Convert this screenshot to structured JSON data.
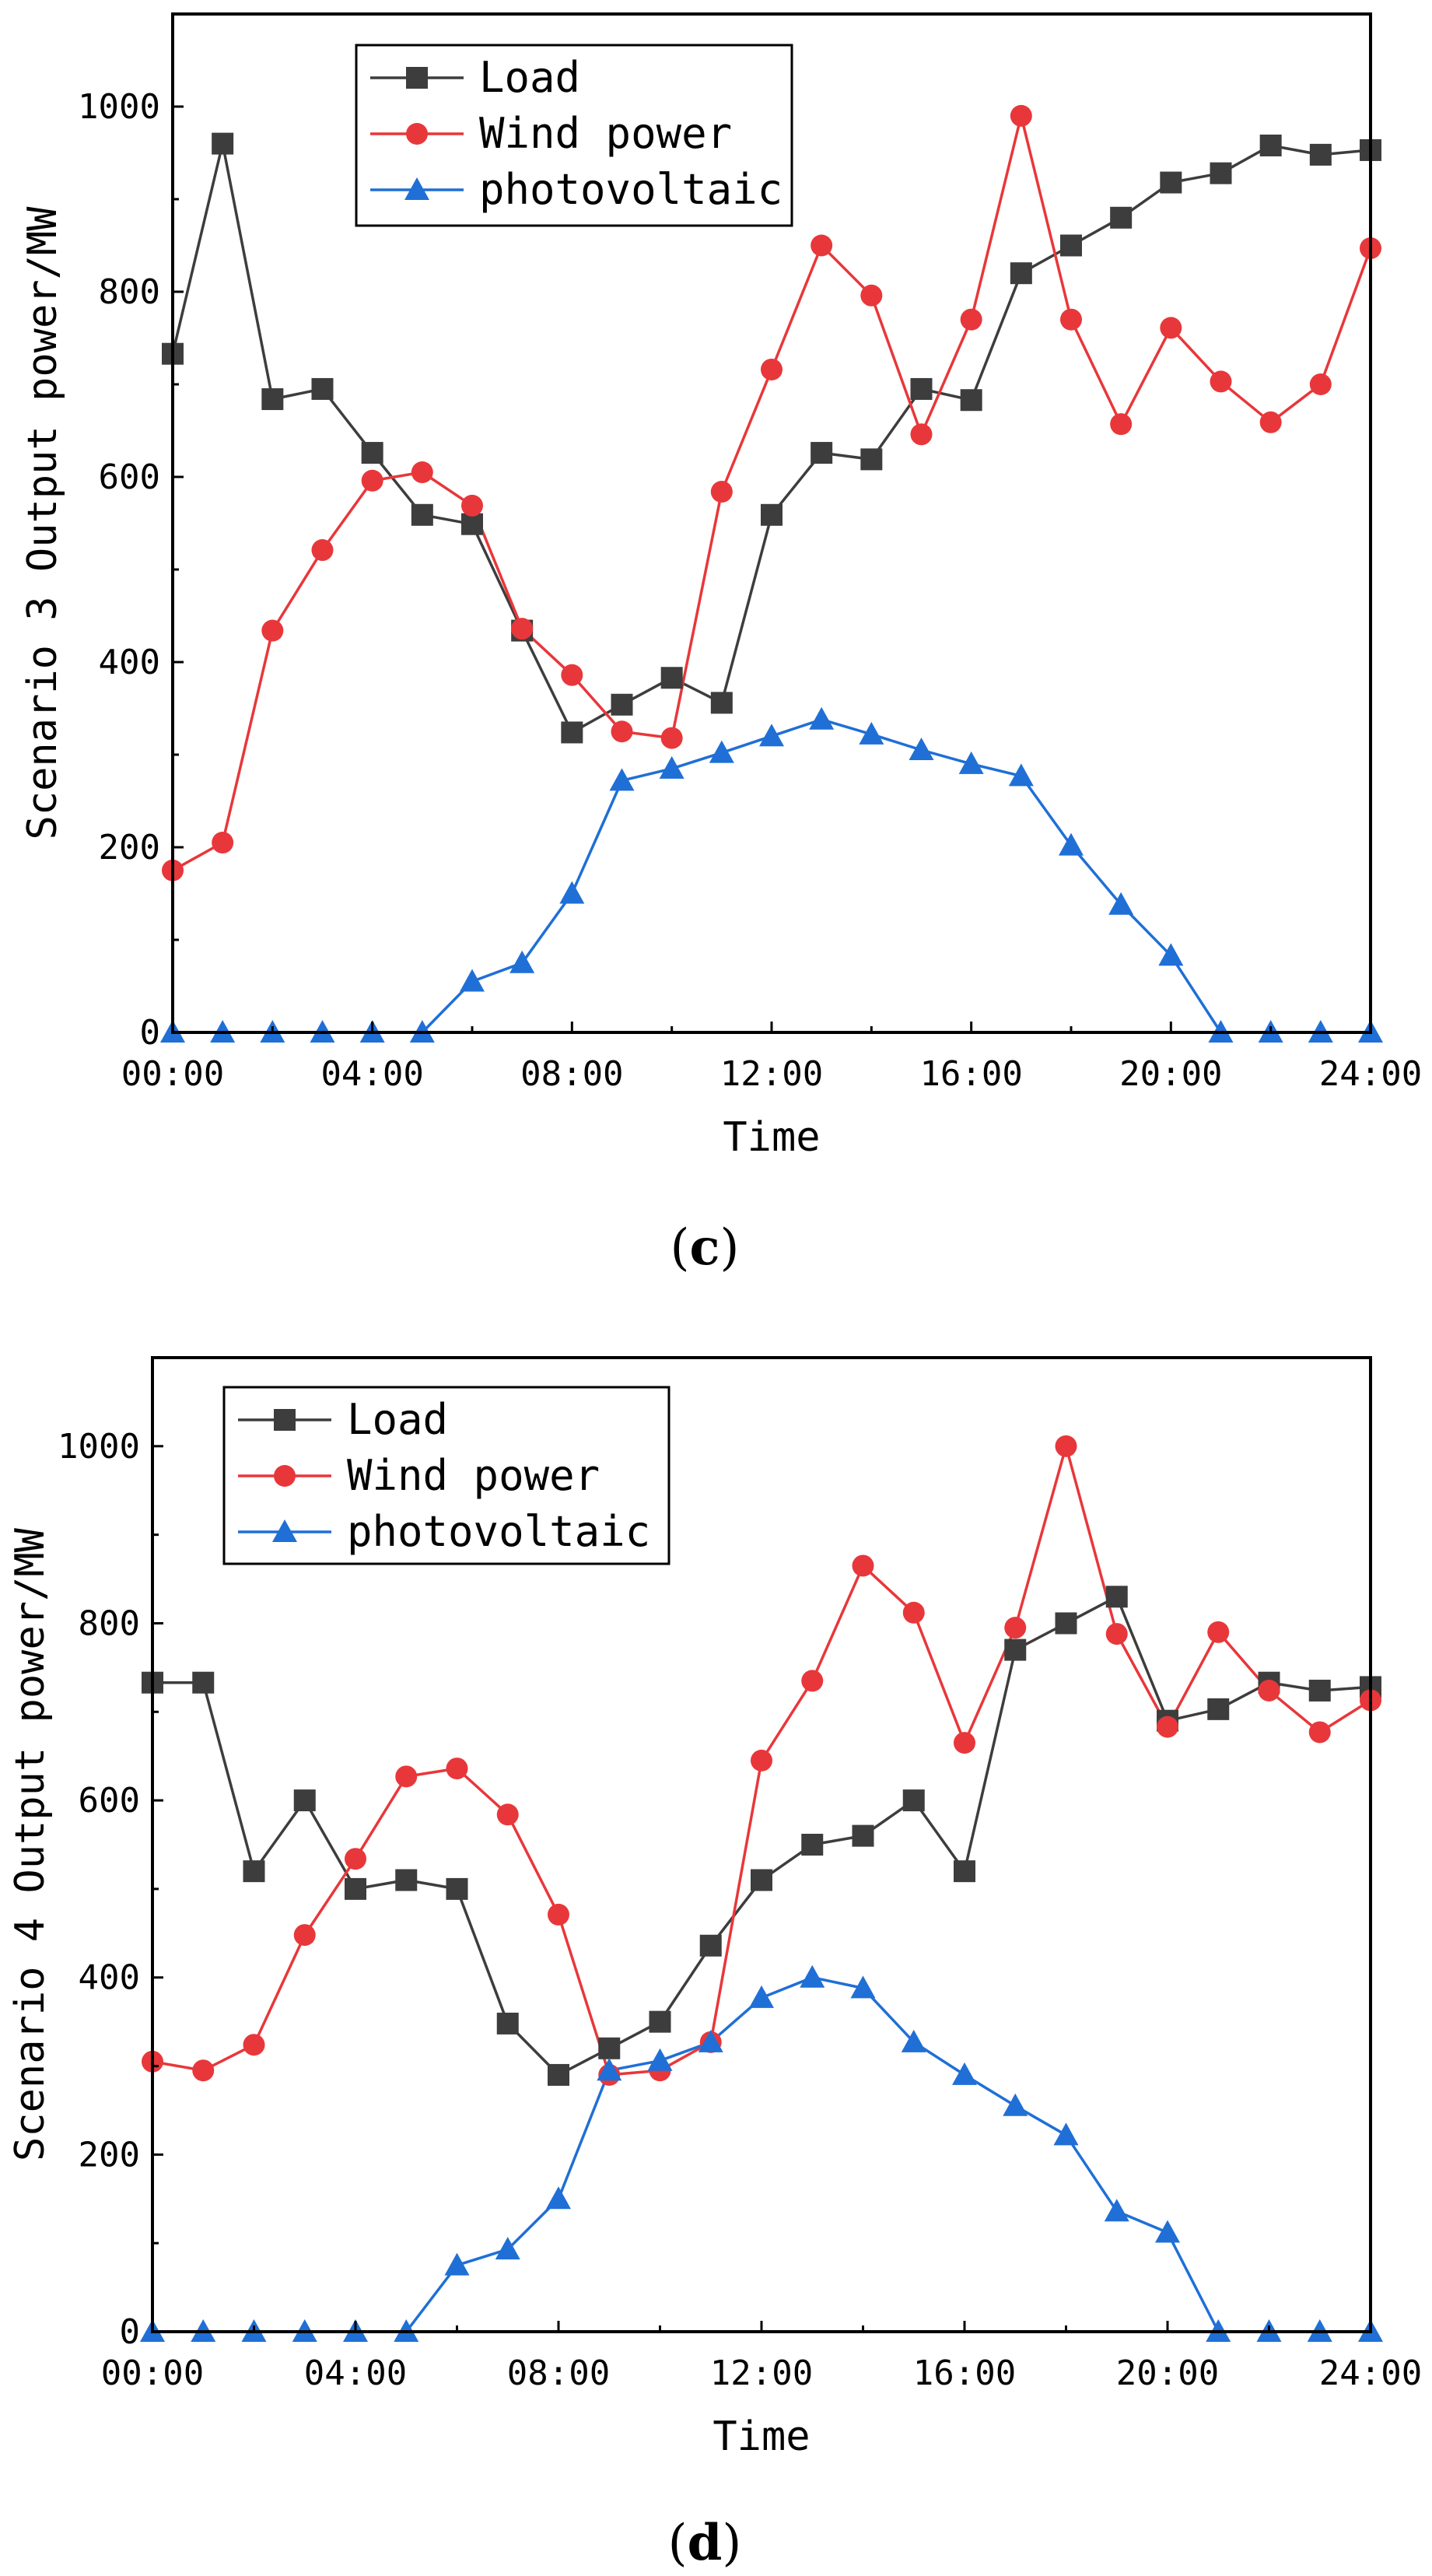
{
  "chart_data": [
    {
      "type": "line",
      "caption": "(c)",
      "caption_letter": "c",
      "xlabel": "Time",
      "ylabel": "Scenario 3 Output power/MW",
      "xlim": [
        0,
        24
      ],
      "ylim": [
        0,
        1100
      ],
      "x_ticks": [
        "00:00",
        "04:00",
        "08:00",
        "12:00",
        "16:00",
        "20:00",
        "24:00"
      ],
      "y_ticks": [
        "0",
        "200",
        "400",
        "600",
        "800",
        "1000"
      ],
      "x": [
        0,
        1,
        2,
        3,
        4,
        5,
        6,
        7,
        8,
        9,
        10,
        11,
        12,
        13,
        14,
        15,
        16,
        17,
        18,
        19,
        20,
        21,
        22,
        23,
        24
      ],
      "series": [
        {
          "name": "Load",
          "color": "#3d3d3d",
          "marker": "square",
          "values": [
            733,
            960,
            684,
            695,
            626,
            559,
            549,
            434,
            324,
            354,
            383,
            356,
            559,
            626,
            619,
            695,
            683,
            820,
            850,
            880,
            918,
            928,
            958,
            948,
            953
          ]
        },
        {
          "name": "Wind power",
          "color": "#e8373a",
          "marker": "circle",
          "values": [
            175,
            205,
            434,
            521,
            596,
            605,
            569,
            436,
            386,
            325,
            318,
            584,
            716,
            850,
            796,
            646,
            770,
            990,
            770,
            657,
            761,
            703,
            659,
            700,
            847
          ]
        },
        {
          "name": "photovoltaic",
          "color": "#1f6fd6",
          "marker": "triangle",
          "values": [
            0,
            0,
            0,
            0,
            0,
            0,
            55,
            75,
            150,
            272,
            285,
            302,
            320,
            338,
            322,
            305,
            290,
            277,
            202,
            138,
            83,
            0,
            0,
            0,
            0
          ]
        }
      ]
    },
    {
      "type": "line",
      "caption": "(d)",
      "caption_letter": "d",
      "xlabel": "Time",
      "ylabel": "Scenario 4 Output power/MW",
      "xlim": [
        0,
        24
      ],
      "ylim": [
        0,
        1100
      ],
      "x_ticks": [
        "00:00",
        "04:00",
        "08:00",
        "12:00",
        "16:00",
        "20:00",
        "24:00"
      ],
      "y_ticks": [
        "0",
        "200",
        "400",
        "600",
        "800",
        "1000"
      ],
      "x": [
        0,
        1,
        2,
        3,
        4,
        5,
        6,
        7,
        8,
        9,
        10,
        11,
        12,
        13,
        14,
        15,
        16,
        17,
        18,
        19,
        20,
        21,
        22,
        23,
        24
      ],
      "series": [
        {
          "name": "Load",
          "color": "#3d3d3d",
          "marker": "square",
          "values": [
            733,
            733,
            520,
            600,
            500,
            510,
            500,
            348,
            290,
            320,
            350,
            436,
            510,
            550,
            560,
            600,
            520,
            770,
            800,
            830,
            690,
            703,
            733,
            724,
            728
          ]
        },
        {
          "name": "Wind power",
          "color": "#e8373a",
          "marker": "circle",
          "values": [
            305,
            295,
            324,
            448,
            534,
            627,
            636,
            584,
            471,
            290,
            295,
            327,
            645,
            735,
            865,
            812,
            665,
            795,
            1000,
            788,
            683,
            790,
            724,
            677,
            713
          ]
        },
        {
          "name": "photovoltaic",
          "color": "#1f6fd6",
          "marker": "triangle",
          "values": [
            0,
            0,
            0,
            0,
            0,
            0,
            75,
            93,
            150,
            295,
            306,
            327,
            377,
            400,
            388,
            327,
            290,
            255,
            222,
            136,
            112,
            0,
            0,
            0,
            0
          ]
        }
      ]
    }
  ]
}
